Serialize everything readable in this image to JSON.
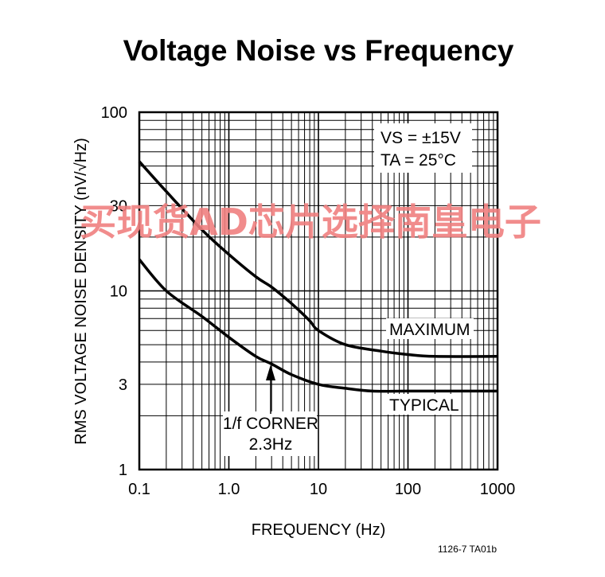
{
  "chart_data": {
    "type": "line",
    "title": "Voltage Noise vs Frequency",
    "xlabel": "FREQUENCY (Hz)",
    "ylabel": "RMS VOLTAGE NOISE DENSITY (nV/√Hz)",
    "x_scale": "log",
    "y_scale": "log",
    "xlim": [
      0.1,
      1000
    ],
    "ylim": [
      1,
      100
    ],
    "x_ticks": [
      "0.1",
      "1.0",
      "10",
      "100",
      "1000"
    ],
    "y_ticks": [
      "1",
      "3",
      "10",
      "30",
      "100"
    ],
    "grid": true,
    "conditions": [
      "VS = ±15V",
      "TA = 25°C"
    ],
    "series": [
      {
        "name": "MAXIMUM",
        "x": [
          0.1,
          0.2,
          0.5,
          1,
          2,
          3,
          5,
          8,
          10,
          20,
          50,
          100,
          200,
          1000
        ],
        "y": [
          53,
          36,
          22,
          16,
          12,
          10.5,
          8.5,
          6.8,
          6.0,
          5.0,
          4.6,
          4.4,
          4.3,
          4.3
        ]
      },
      {
        "name": "TYPICAL",
        "x": [
          0.1,
          0.2,
          0.5,
          1,
          2,
          3,
          5,
          10,
          20,
          40,
          100,
          1000
        ],
        "y": [
          15,
          10,
          7.2,
          5.5,
          4.3,
          3.9,
          3.4,
          3.0,
          2.85,
          2.75,
          2.75,
          2.75
        ]
      }
    ],
    "annotations": [
      {
        "text": "1/f CORNER",
        "x": 2.3
      },
      {
        "text": "2.3Hz",
        "x": 2.3
      }
    ],
    "figure_code": "1126-7 TA01b"
  },
  "watermark": "买现货AD芯片选择南皇电子"
}
